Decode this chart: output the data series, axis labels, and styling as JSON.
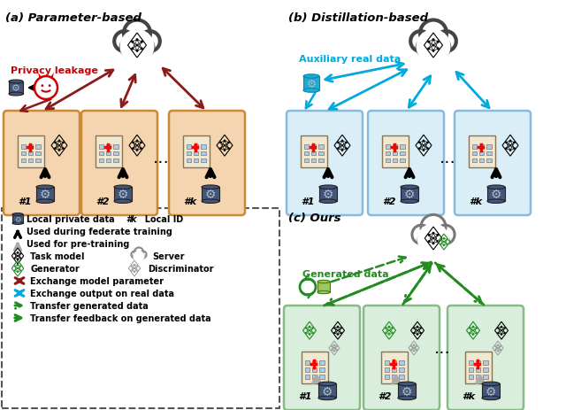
{
  "panel_a_title": "(a) Parameter-based",
  "panel_b_title": "(b) Distillation-based",
  "panel_c_title": "(c) Ours",
  "privacy_leakage_text": "Privacy leakage",
  "auxiliary_data_text": "Auxiliary real data",
  "generated_data_text": "Generated data",
  "bg_color": "#ffffff",
  "dark_red": "#8B1a1a",
  "cyan": "#00aadd",
  "green": "#228B22",
  "light_green_db": "#ccee88",
  "client_fill_a": "#f5d5b0",
  "client_edge_a": "#cc8833",
  "client_fill_b": "#daeef8",
  "client_edge_b": "#88bbdd",
  "client_fill_c": "#daeedd",
  "client_edge_c": "#88bb88",
  "cloud_fill": "#ffffff",
  "cloud_edge": "#444444",
  "cloud_lw": 3.0,
  "legend_edge": "#555555"
}
